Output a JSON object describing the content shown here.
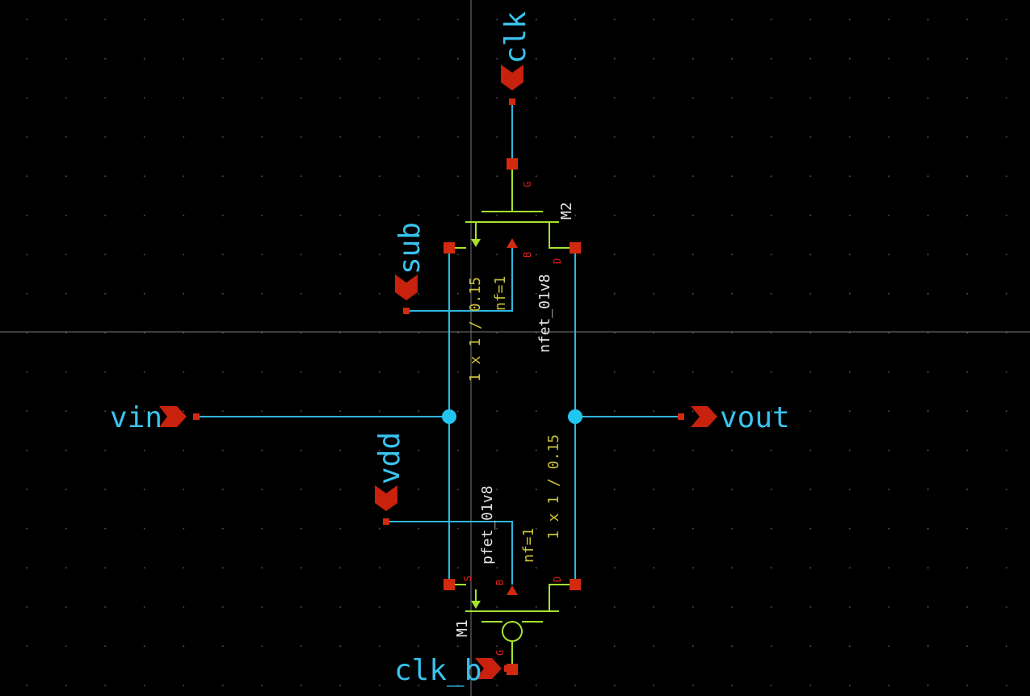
{
  "schematic": {
    "nets": {
      "clk": "clk",
      "sub": "sub",
      "vin": "vin",
      "vout": "vout",
      "vdd": "vdd",
      "clk_b": "clk_b"
    },
    "m2": {
      "name": "M2",
      "cell": "nfet_01v8",
      "size": "1 x 1 / 0.15",
      "nf": "nf=1",
      "pins": {
        "g": "G",
        "b": "B",
        "d": "D"
      }
    },
    "m1": {
      "name": "M1",
      "cell": "pfet_01v8",
      "size": "1 x 1 / 0.15",
      "nf": "nf=1",
      "pins": {
        "s": "S",
        "b": "B",
        "d": "D",
        "g": "G"
      }
    },
    "colors": {
      "background": "#000000",
      "wire": "#2fb7e0",
      "device": "#a6e22e",
      "pin": "#d32a0f",
      "net_label": "#3ac3ee",
      "param_text": "#c9c23b",
      "instance_text": "#e6e6e6"
    }
  }
}
